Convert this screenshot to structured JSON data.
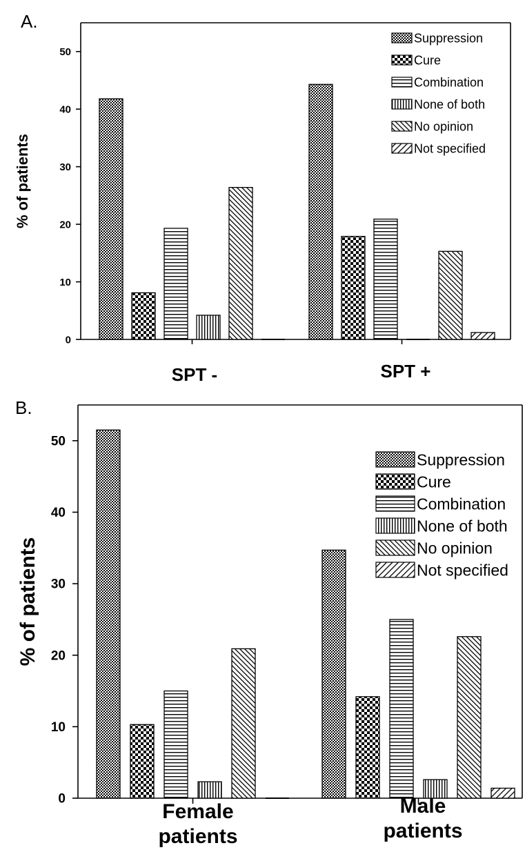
{
  "chart_data": [
    {
      "type": "bar",
      "panel_label": "A.",
      "title": "",
      "xlabel": "",
      "ylabel": "% of patients",
      "ylim": [
        0,
        55
      ],
      "yticks": [
        0,
        10,
        20,
        30,
        40,
        50
      ],
      "categories": [
        "SPT -",
        "SPT +"
      ],
      "legend_position": "top-right",
      "series": [
        {
          "name": "Suppression",
          "pattern": "dense-cross",
          "values": [
            41.8,
            44.3
          ]
        },
        {
          "name": "Cure",
          "pattern": "checker",
          "values": [
            8.1,
            17.9
          ]
        },
        {
          "name": "Combination",
          "pattern": "horizontal-lines",
          "values": [
            19.3,
            20.9
          ]
        },
        {
          "name": "None of both",
          "pattern": "vertical-lines",
          "values": [
            4.2,
            0
          ]
        },
        {
          "name": "No opinion",
          "pattern": "diagonal-lines",
          "values": [
            26.4,
            15.3
          ]
        },
        {
          "name": "Not specified",
          "pattern": "reverse-diagonal-lines",
          "values": [
            0,
            1.2
          ]
        }
      ],
      "grid": false
    },
    {
      "type": "bar",
      "panel_label": "B.",
      "title": "",
      "xlabel": "",
      "ylabel": "% of patients",
      "ylim": [
        0,
        55
      ],
      "yticks": [
        0,
        10,
        20,
        30,
        40,
        50
      ],
      "categories": [
        [
          "Female",
          "patients"
        ],
        [
          "Male",
          "patients"
        ]
      ],
      "legend_position": "top-right",
      "series": [
        {
          "name": "Suppression",
          "pattern": "dense-cross",
          "values": [
            51.5,
            34.7
          ]
        },
        {
          "name": "Cure",
          "pattern": "checker",
          "values": [
            10.3,
            14.2
          ]
        },
        {
          "name": "Combination",
          "pattern": "horizontal-lines",
          "values": [
            15.0,
            25.0
          ]
        },
        {
          "name": "None of both",
          "pattern": "vertical-lines",
          "values": [
            2.3,
            2.6
          ]
        },
        {
          "name": "No opinion",
          "pattern": "diagonal-lines",
          "values": [
            20.9,
            22.6
          ]
        },
        {
          "name": "Not specified",
          "pattern": "reverse-diagonal-lines",
          "values": [
            0,
            1.4
          ]
        }
      ],
      "grid": false
    }
  ]
}
